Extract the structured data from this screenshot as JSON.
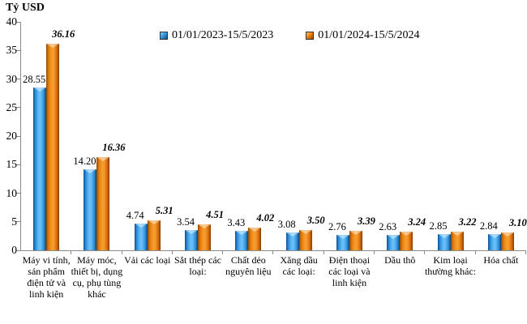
{
  "chart_data": {
    "type": "bar",
    "title": "Tỷ USD",
    "ylabel": "Tỷ USD",
    "xlabel": "",
    "ylim": [
      0,
      40
    ],
    "ytick_step": 5,
    "grid": false,
    "legend_position": "top",
    "categories": [
      "Máy vi tính, sản phẩm điện tử và linh kiện",
      "Máy móc, thiết bị, dụng cụ, phụ tùng khác",
      "Vải các loại",
      "Sắt thép các loại:",
      "Chất dẻo nguyên liệu",
      "Xăng dầu các loại:",
      "Điện thoại các loại và linh kiện",
      "Dầu thô",
      "Kim loại thường khác:",
      "Hóa chất"
    ],
    "series": [
      {
        "name": "01/01/2023-15/5/2023",
        "color": "#2f96e0",
        "values": [
          28.55,
          14.2,
          4.74,
          3.54,
          3.43,
          3.08,
          2.76,
          2.63,
          2.85,
          2.84
        ]
      },
      {
        "name": "01/01/2024-15/5/2024",
        "color": "#e8740e",
        "values": [
          36.16,
          16.36,
          5.31,
          4.51,
          4.02,
          3.5,
          3.39,
          3.24,
          3.22,
          3.1
        ]
      }
    ],
    "axis_color": "#8a8a8a"
  }
}
